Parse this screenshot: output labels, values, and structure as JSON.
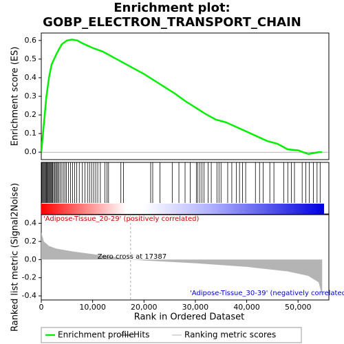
{
  "chart_data": [
    {
      "type": "line",
      "name": "Enrichment profile",
      "title": "Enrichment plot:",
      "subtitle": "GOBP_ELECTRON_TRANSPORT_CHAIN",
      "ylabel": "Enrichment score (ES)",
      "color": "#00ee00",
      "x": [
        0,
        500,
        1000,
        1500,
        2000,
        3000,
        4000,
        5000,
        6000,
        7000,
        8000,
        10000,
        12000,
        14000,
        16000,
        18000,
        20000,
        22000,
        24000,
        26000,
        28000,
        30000,
        32000,
        34000,
        36000,
        38000,
        40000,
        42000,
        44000,
        46000,
        48000,
        50000,
        52000,
        54000,
        54700
      ],
      "values": [
        0,
        0.15,
        0.3,
        0.4,
        0.47,
        0.53,
        0.58,
        0.6,
        0.605,
        0.6,
        0.585,
        0.56,
        0.54,
        0.51,
        0.48,
        0.45,
        0.42,
        0.385,
        0.35,
        0.315,
        0.275,
        0.24,
        0.205,
        0.175,
        0.16,
        0.135,
        0.11,
        0.085,
        0.06,
        0.045,
        0.015,
        0.01,
        -0.01,
        0.0,
        0.0
      ],
      "xlim": [
        0,
        56000
      ],
      "ylim": [
        -0.04,
        0.64
      ],
      "yticks": [
        {
          "value": 0,
          "label": "0.0"
        },
        0.1,
        0.2,
        0.3,
        0.4,
        0.5,
        0.6
      ]
    },
    {
      "type": "hits",
      "name": "Hits",
      "color": "#000000",
      "xlim": [
        0,
        56000
      ],
      "x": [
        100,
        250,
        400,
        550,
        700,
        850,
        1000,
        1150,
        1300,
        1450,
        1600,
        1750,
        1900,
        2050,
        2200,
        2400,
        2600,
        2800,
        3000,
        3200,
        3400,
        3700,
        4000,
        4300,
        4600,
        4900,
        5300,
        5700,
        6100,
        6500,
        6900,
        7400,
        8000,
        8500,
        9000,
        9400,
        9800,
        10200,
        10600,
        11000,
        11500,
        12400,
        12800,
        13100,
        15500,
        16000,
        21300,
        21700,
        23100,
        25500,
        26800,
        28000,
        29000,
        30200,
        30500,
        30900,
        31300,
        31700,
        32500,
        33100,
        34200,
        34600,
        35000,
        36300,
        37100,
        38000,
        38600,
        39200,
        39800,
        41700,
        42500,
        43200,
        44500,
        45300,
        47200,
        48000,
        48700,
        49300,
        50800,
        51500,
        52200,
        53000,
        53700,
        54300
      ]
    },
    {
      "type": "area",
      "name": "Ranking metric scores",
      "color": "#b4b4b4",
      "ylabel": "Ranked list metric (Signal2Noise)",
      "xlabel": "Rank in Ordered Dataset",
      "x": [
        0,
        500,
        1500,
        3000,
        6000,
        10000,
        14000,
        17387,
        20000,
        30000,
        40000,
        48000,
        52000,
        54000,
        54700
      ],
      "values": [
        0.3,
        0.2,
        0.15,
        0.12,
        0.09,
        0.06,
        0.03,
        0,
        -0.01,
        -0.04,
        -0.08,
        -0.13,
        -0.18,
        -0.25,
        -0.4
      ],
      "xlim": [
        0,
        56000
      ],
      "ylim": [
        -0.445,
        0.495
      ],
      "yticks": [
        0.4,
        0.2,
        {
          "value": 0,
          "label": "0.0"
        },
        -0.2,
        -0.4
      ],
      "xticks": [
        {
          "value": 0,
          "label": "0"
        },
        {
          "value": 10000,
          "label": "10,000"
        },
        {
          "value": 20000,
          "label": "20,000"
        },
        {
          "value": 30000,
          "label": "30,000"
        },
        {
          "value": 40000,
          "label": "40,000"
        },
        {
          "value": 50000,
          "label": "50,000"
        }
      ],
      "zero_cross": 17387,
      "zero_cross_label": "Zero cross at 17387",
      "positive_label": "'Adipose-Tissue_20-29' (positively correlated)",
      "negative_label": "'Adipose-Tissue_30-39' (negatively correlated"
    }
  ]
}
